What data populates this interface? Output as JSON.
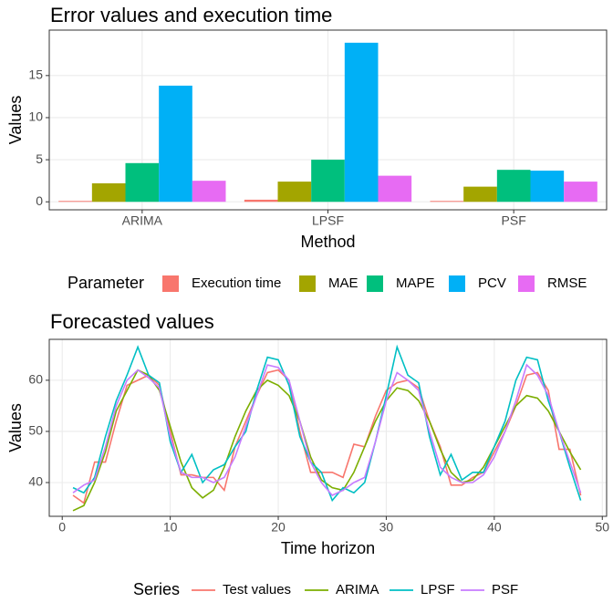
{
  "chart_data": [
    {
      "type": "bar",
      "title": "Error values and execution time",
      "x_label": "Method",
      "y_label": "Values",
      "legend_title": "Parameter",
      "categories": [
        "ARIMA",
        "LPSF",
        "PSF"
      ],
      "series": [
        {
          "name": "Execution time",
          "color": "#F8766D",
          "values": [
            0.1,
            0.25,
            0.1
          ]
        },
        {
          "name": "MAE",
          "color": "#A3A500",
          "values": [
            2.2,
            2.4,
            1.8
          ]
        },
        {
          "name": "MAPE",
          "color": "#00BF7D",
          "values": [
            4.6,
            5.0,
            3.8
          ]
        },
        {
          "name": "PCV",
          "color": "#00B0F6",
          "values": [
            13.8,
            18.9,
            3.7
          ]
        },
        {
          "name": "RMSE",
          "color": "#E76BF3",
          "values": [
            2.5,
            3.1,
            2.4
          ]
        }
      ],
      "ylim": [
        -0.95,
        20.4
      ],
      "yticks": [
        0,
        5,
        10,
        15
      ],
      "grid": true,
      "legend": "bottom"
    },
    {
      "type": "line",
      "title": "Forecasted values",
      "x_label": "Time horizon",
      "y_label": "Values",
      "legend_title": "Series",
      "x": [
        1,
        2,
        3,
        4,
        5,
        6,
        7,
        8,
        9,
        10,
        11,
        12,
        13,
        14,
        15,
        16,
        17,
        18,
        19,
        20,
        21,
        22,
        23,
        24,
        25,
        26,
        27,
        28,
        29,
        30,
        31,
        32,
        33,
        34,
        35,
        36,
        37,
        38,
        39,
        40,
        41,
        42,
        43,
        44,
        45,
        46,
        47,
        48
      ],
      "series": [
        {
          "name": "Test values",
          "color": "#F8766D",
          "values": [
            37.5,
            36,
            44,
            44,
            52,
            59,
            60,
            61,
            59,
            50,
            41.5,
            41.5,
            41,
            41,
            38.5,
            47,
            52,
            57,
            61.5,
            62,
            60,
            50,
            42,
            42,
            42,
            41,
            47.5,
            47,
            53,
            58,
            59.5,
            60,
            58.5,
            52,
            47,
            39.5,
            39.5,
            41,
            42,
            46,
            50,
            55,
            61,
            61.5,
            58,
            46.5,
            46.5,
            37.5
          ]
        },
        {
          "name": "ARIMA",
          "color": "#7CAE00",
          "values": [
            34.5,
            35.5,
            40,
            46,
            54,
            58,
            62,
            61,
            58,
            51,
            44,
            39,
            37,
            38.5,
            43,
            49,
            54,
            58,
            60,
            59,
            57,
            52,
            45,
            40.5,
            39,
            38.5,
            42,
            47,
            52,
            56,
            58.5,
            58,
            56,
            52,
            46.5,
            42,
            40,
            40.5,
            43,
            47,
            51,
            55,
            57,
            56.5,
            54,
            50,
            46,
            42.5
          ]
        },
        {
          "name": "LPSF",
          "color": "#00BFC4",
          "values": [
            39,
            38,
            41,
            49,
            56,
            61,
            66.5,
            61,
            59.5,
            48,
            42,
            45.5,
            40,
            42.5,
            43.5,
            47,
            50,
            58,
            64.5,
            64,
            59,
            49,
            44,
            42,
            36.5,
            39,
            38,
            40,
            48,
            57,
            66.5,
            61,
            59.5,
            49,
            41.5,
            45.5,
            40.5,
            42,
            42,
            47,
            52,
            60,
            64.5,
            64,
            56,
            50,
            43,
            36.5
          ]
        },
        {
          "name": "PSF",
          "color": "#C77CFF",
          "values": [
            38,
            39.5,
            40.5,
            47,
            55,
            60,
            62,
            60.5,
            58.5,
            49,
            42,
            41,
            41,
            40,
            41,
            45,
            51,
            57,
            63,
            62.5,
            60,
            52,
            44,
            40,
            37.5,
            38.5,
            40,
            41,
            48,
            56,
            61.5,
            60,
            58,
            50,
            43,
            41,
            40,
            40,
            41.5,
            45,
            50,
            56,
            63,
            61,
            57,
            50,
            44,
            38
          ]
        }
      ],
      "xlim": [
        -1.2,
        50.4
      ],
      "xticks": [
        0,
        10,
        20,
        30,
        40,
        50
      ],
      "ylim": [
        33.4,
        68
      ],
      "yticks": [
        40,
        50,
        60
      ],
      "grid": true,
      "legend": "bottom"
    }
  ]
}
